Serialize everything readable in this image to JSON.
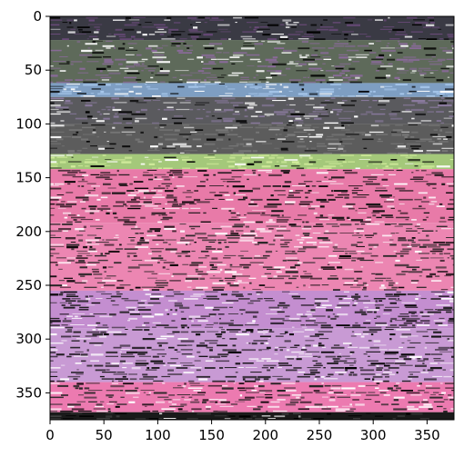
{
  "chart_data": {
    "type": "heatmap",
    "title": "",
    "xlabel": "",
    "ylabel": "",
    "xlim": [
      0,
      375
    ],
    "ylim": [
      375,
      0
    ],
    "x_ticks": [
      0,
      50,
      100,
      150,
      200,
      250,
      300,
      350
    ],
    "y_ticks": [
      0,
      50,
      100,
      150,
      200,
      250,
      300,
      350
    ],
    "x_tick_labels": [
      "0",
      "50",
      "100",
      "150",
      "200",
      "250",
      "300",
      "350"
    ],
    "y_tick_labels": [
      "0",
      "50",
      "100",
      "150",
      "200",
      "250",
      "300",
      "350"
    ],
    "image_bands": [
      {
        "y_start": 0,
        "y_end": 22,
        "color": "#3a3a44",
        "noise": "#6a4a7a"
      },
      {
        "y_start": 22,
        "y_end": 62,
        "color": "#5e6a5a",
        "noise": "#8a6a9a"
      },
      {
        "y_start": 62,
        "y_end": 75,
        "color": "#7e9ec2",
        "noise": "#a8c8ec"
      },
      {
        "y_start": 75,
        "y_end": 100,
        "color": "#5a5a5e",
        "noise": "#8a7a9e"
      },
      {
        "y_start": 100,
        "y_end": 128,
        "color": "#5c5c5c",
        "noise": "#7a7a7a"
      },
      {
        "y_start": 128,
        "y_end": 142,
        "color": "#a4c87a",
        "noise": "#d2ec9c"
      },
      {
        "y_start": 142,
        "y_end": 192,
        "color": "#e87aa8",
        "noise": "#111111"
      },
      {
        "y_start": 192,
        "y_end": 255,
        "color": "#ec86b2",
        "noise": "#222222"
      },
      {
        "y_start": 255,
        "y_end": 290,
        "color": "#c48ed0",
        "noise": "#1a1a1a"
      },
      {
        "y_start": 290,
        "y_end": 340,
        "color": "#c89ad4",
        "noise": "#111111"
      },
      {
        "y_start": 340,
        "y_end": 368,
        "color": "#ec7ab0",
        "noise": "#222222"
      },
      {
        "y_start": 368,
        "y_end": 375,
        "color": "#1a1a1a",
        "noise": "#444444"
      }
    ]
  }
}
